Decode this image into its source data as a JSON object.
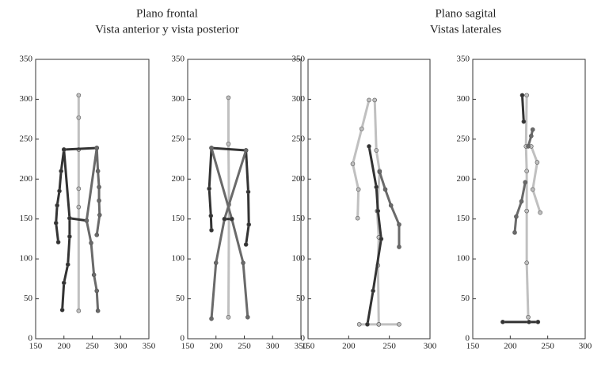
{
  "headers": [
    [
      "Plano frontal",
      "Vista anterior y vista posterior"
    ],
    [
      "Plano sagital",
      "Vistas laterales"
    ]
  ],
  "chart_data": [
    {
      "type": "line",
      "xlim": [
        150,
        350
      ],
      "ylim": [
        0,
        350
      ],
      "xticks": [
        150,
        200,
        250,
        300,
        350
      ],
      "yticks": [
        0,
        50,
        100,
        150,
        200,
        250,
        300,
        350
      ],
      "series": [
        {
          "color": "#c0c0c0",
          "x": [
            226,
            226,
            226,
            226,
            226,
            226
          ],
          "y": [
            305,
            277,
            237,
            188,
            165,
            35
          ]
        },
        {
          "color": "#333333",
          "x": [
            190,
            186,
            188,
            192,
            195,
            200,
            258
          ],
          "y": [
            121,
            145,
            167,
            185,
            210,
            237,
            239
          ]
        },
        {
          "color": "#333333",
          "x": [
            200,
            210,
            240
          ],
          "y": [
            237,
            151,
            148
          ]
        },
        {
          "color": "#333333",
          "x": [
            210,
            210,
            207,
            200,
            197
          ],
          "y": [
            151,
            128,
            93,
            70,
            36
          ]
        },
        {
          "color": "#6a6a6a",
          "x": [
            258,
            260,
            262,
            262,
            263,
            258
          ],
          "y": [
            239,
            210,
            190,
            173,
            155,
            130
          ]
        },
        {
          "color": "#6a6a6a",
          "x": [
            258,
            240,
            248,
            253,
            258,
            260
          ],
          "y": [
            239,
            148,
            120,
            80,
            60,
            35
          ]
        }
      ]
    },
    {
      "type": "line",
      "xlim": [
        150,
        350
      ],
      "ylim": [
        0,
        350
      ],
      "xticks": [
        150,
        200,
        250,
        300,
        350
      ],
      "yticks": [
        0,
        50,
        100,
        150,
        200,
        250,
        300,
        350
      ],
      "series": [
        {
          "color": "#c0c0c0",
          "x": [
            222,
            222,
            223,
            222
          ],
          "y": [
            302,
            244,
            168,
            27
          ]
        },
        {
          "color": "#333333",
          "x": [
            192,
            191,
            188,
            192,
            253,
            257,
            258,
            253
          ],
          "y": [
            136,
            154,
            188,
            239,
            236,
            184,
            143,
            118
          ]
        },
        {
          "color": "#6a6a6a",
          "x": [
            192,
            228,
            248,
            256
          ],
          "y": [
            239,
            150,
            95,
            27
          ]
        },
        {
          "color": "#6a6a6a",
          "x": [
            253,
            215,
            200,
            192
          ],
          "y": [
            236,
            150,
            95,
            25
          ]
        },
        {
          "color": "#333333",
          "x": [
            215,
            228
          ],
          "y": [
            150,
            150
          ]
        }
      ]
    },
    {
      "type": "line",
      "xlim": [
        150,
        300
      ],
      "ylim": [
        0,
        350
      ],
      "xticks": [
        150,
        200,
        250,
        300
      ],
      "yticks": [
        0,
        50,
        100,
        150,
        200,
        250,
        300,
        350
      ],
      "series": [
        {
          "color": "#c0c0c0",
          "x": [
            232,
            234,
            238,
            235,
            237,
            236,
            237
          ],
          "y": [
            299,
            236,
            210,
            160,
            127,
            92,
            18
          ]
        },
        {
          "color": "#c0c0c0",
          "x": [
            213,
            237,
            262
          ],
          "y": [
            18,
            18,
            18
          ]
        },
        {
          "color": "#c0c0c0",
          "x": [
            225,
            216,
            205,
            212,
            211
          ],
          "y": [
            299,
            263,
            219,
            187,
            151
          ]
        },
        {
          "color": "#6a6a6a",
          "x": [
            238,
            245,
            252,
            262,
            262
          ],
          "y": [
            209,
            187,
            167,
            143,
            115
          ]
        },
        {
          "color": "#333333",
          "x": [
            225,
            234,
            236,
            240,
            230,
            223
          ],
          "y": [
            241,
            190,
            160,
            125,
            60,
            18
          ]
        }
      ]
    },
    {
      "type": "line",
      "xlim": [
        150,
        300
      ],
      "ylim": [
        0,
        350
      ],
      "xticks": [
        150,
        200,
        250,
        300
      ],
      "yticks": [
        0,
        50,
        100,
        150,
        200,
        250,
        300,
        350
      ],
      "series": [
        {
          "color": "#c0c0c0",
          "x": [
            222,
            221,
            222,
            222,
            222,
            224
          ],
          "y": [
            305,
            241,
            210,
            160,
            95,
            27
          ]
        },
        {
          "color": "#c0c0c0",
          "x": [
            228,
            236,
            230,
            240
          ],
          "y": [
            241,
            221,
            187,
            158
          ]
        },
        {
          "color": "#6a6a6a",
          "x": [
            230,
            228,
            224
          ],
          "y": [
            262,
            254,
            241
          ]
        },
        {
          "color": "#6a6a6a",
          "x": [
            220,
            215,
            208,
            206
          ],
          "y": [
            196,
            172,
            153,
            133
          ]
        },
        {
          "color": "#333333",
          "x": [
            190,
            225,
            237
          ],
          "y": [
            21,
            21,
            21
          ]
        },
        {
          "color": "#333333",
          "x": [
            216,
            218
          ],
          "y": [
            305,
            272
          ]
        }
      ]
    }
  ]
}
